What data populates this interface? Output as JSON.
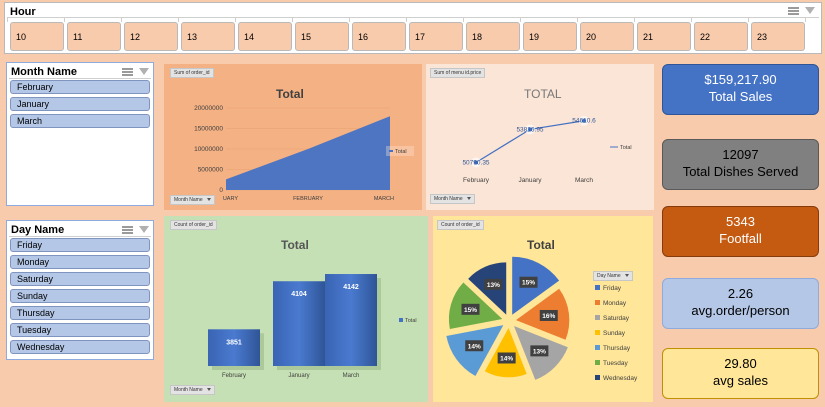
{
  "hour_slicer": {
    "title": "Hour",
    "items": [
      "10",
      "11",
      "12",
      "13",
      "14",
      "15",
      "16",
      "17",
      "18",
      "19",
      "20",
      "21",
      "22",
      "23"
    ]
  },
  "month_slicer": {
    "title": "Month Name",
    "items": [
      "February",
      "January",
      "March"
    ]
  },
  "day_slicer": {
    "title": "Day Name",
    "items": [
      "Friday",
      "Monday",
      "Saturday",
      "Sunday",
      "Thursday",
      "Tuesday",
      "Wednesday"
    ]
  },
  "charts": {
    "area": {
      "field_label": "Sum of order_id",
      "title": "Total",
      "legend": "Total",
      "axis_button": "Month Name"
    },
    "line": {
      "field_label": "Sum of menu id.price",
      "title": "TOTAL",
      "legend": "Total",
      "axis_button": "Month Name"
    },
    "bar": {
      "field_label": "Count of order_id",
      "title": "Total",
      "legend": "Total",
      "axis_button": "Month Name"
    },
    "pie": {
      "field_label": "Count of order_id",
      "title": "Total",
      "legend_button": "Day Name"
    }
  },
  "chart_data": [
    {
      "type": "area",
      "title": "Total",
      "categories": [
        "JANUARY",
        "FEBRUARY",
        "MARCH"
      ],
      "category_display": [
        "UARY",
        "FEBRUARY",
        "MARCH"
      ],
      "series": [
        {
          "name": "Total",
          "values": [
            2600000,
            10000000,
            18000000
          ]
        }
      ],
      "ylim": [
        0,
        20000000
      ],
      "y_ticks": [
        "0",
        "5000000",
        "10000000",
        "15000000",
        "20000000"
      ],
      "color": "#4472c4",
      "legend": "right"
    },
    {
      "type": "line",
      "title": "TOTAL",
      "categories": [
        "February",
        "January",
        "March"
      ],
      "series": [
        {
          "name": "Total",
          "values": [
            50790.35,
            53816.95,
            54610.6
          ]
        }
      ],
      "data_labels": [
        "50790.35",
        "53816.95",
        "54610.6"
      ],
      "color": "#4472c4",
      "legend": "right"
    },
    {
      "type": "bar",
      "title": "Total",
      "categories": [
        "February",
        "January",
        "March"
      ],
      "series": [
        {
          "name": "Total",
          "values": [
            3851,
            4104,
            4142
          ]
        }
      ],
      "data_labels": [
        "3851",
        "4104",
        "4142"
      ],
      "color": "#4472c4",
      "legend": "right"
    },
    {
      "type": "pie",
      "title": "Total",
      "categories": [
        "Friday",
        "Monday",
        "Saturday",
        "Sunday",
        "Thursday",
        "Tuesday",
        "Wednesday"
      ],
      "values": [
        15,
        16,
        13,
        14,
        14,
        15,
        13
      ],
      "data_labels": [
        "15%",
        "16%",
        "13%",
        "14%",
        "14%",
        "15%",
        "13%"
      ],
      "colors": [
        "#4472c4",
        "#ed7d31",
        "#a5a5a5",
        "#ffc000",
        "#5b9bd5",
        "#70ad47",
        "#264478"
      ],
      "legend": "right"
    }
  ],
  "kpis": [
    {
      "value": "$159,217.90",
      "label": "Total Sales",
      "bg": "#4472c4",
      "border": "#2f5597",
      "color": "#ffffff"
    },
    {
      "value": "12097",
      "label": "Total Dishes Served",
      "bg": "#808080",
      "border": "#595959",
      "color": "#000000"
    },
    {
      "value": "5343",
      "label": "Footfall",
      "bg": "#c55a11",
      "border": "#843c0c",
      "color": "#ffffff"
    },
    {
      "value": "2.26",
      "label": "avg.order/person",
      "bg": "#b4c7e7",
      "border": "#8faadc",
      "color": "#000000"
    },
    {
      "value": "29.80",
      "label": "avg sales",
      "bg": "#ffe699",
      "border": "#bf9000",
      "color": "#000000"
    }
  ]
}
